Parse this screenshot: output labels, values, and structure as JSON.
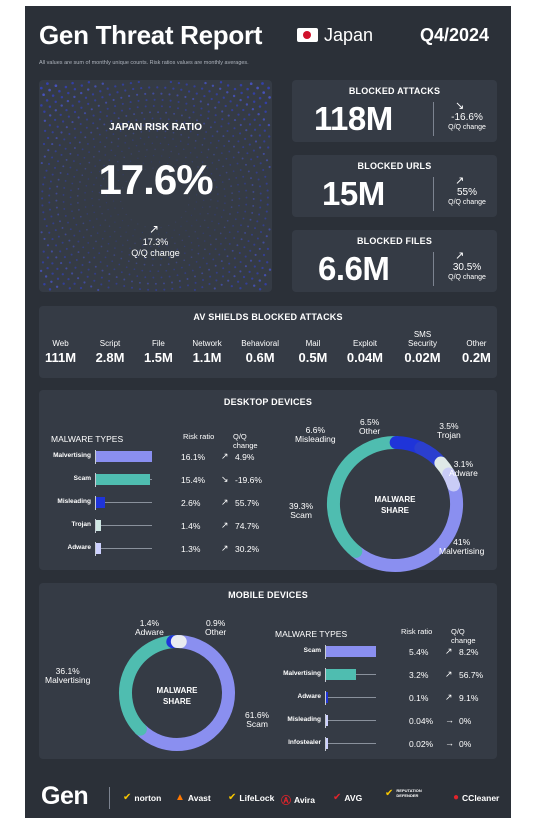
{
  "header": {
    "title": "Gen Threat Report",
    "country": "Japan",
    "quarter": "Q4/2024",
    "note": "All values are sum of monthly unique counts. Risk ratios values are monthly averages."
  },
  "risk": {
    "label": "JAPAN RISK RATIO",
    "value": "17.6%",
    "change": "17.3%",
    "change_label": "Q/Q change",
    "trend_icon": "trend-up-icon"
  },
  "stats": [
    {
      "title": "BLOCKED ATTACKS",
      "value": "118M",
      "change": "-16.6%",
      "change_label": "Q/Q change",
      "trend_icon": "trend-down-icon"
    },
    {
      "title": "BLOCKED URLS",
      "value": "15M",
      "change": "55%",
      "change_label": "Q/Q change",
      "trend_icon": "trend-up-icon"
    },
    {
      "title": "BLOCKED FILES",
      "value": "6.6M",
      "change": "30.5%",
      "change_label": "Q/Q change",
      "trend_icon": "trend-up-icon"
    }
  ],
  "shields": {
    "title": "AV SHIELDS BLOCKED ATTACKS",
    "items": [
      {
        "label": "Web",
        "value": "111M"
      },
      {
        "label": "Script",
        "value": "2.8M"
      },
      {
        "label": "File",
        "value": "1.5M"
      },
      {
        "label": "Network",
        "value": "1.1M"
      },
      {
        "label": "Behavioral",
        "value": "0.6M"
      },
      {
        "label": "Mail",
        "value": "0.5M"
      },
      {
        "label": "Exploit",
        "value": "0.04M"
      },
      {
        "label": "SMS Security",
        "value": "0.02M"
      },
      {
        "label": "Other",
        "value": "0.2M"
      }
    ]
  },
  "desktop": {
    "title": "DESKTOP DEVICES",
    "table_header": {
      "types": "MALWARE TYPES",
      "ratio": "Risk ratio",
      "change": "Q/Q change"
    },
    "rows": [
      {
        "name": "Malvertising",
        "ratio": "16.1%",
        "ratio_value": 16.1,
        "change": "4.9%",
        "trend": "up",
        "color": "#8a8ff0"
      },
      {
        "name": "Scam",
        "ratio": "15.4%",
        "ratio_value": 15.4,
        "change": "-19.6%",
        "trend": "down",
        "color": "#4fbdb0"
      },
      {
        "name": "Misleading",
        "ratio": "2.6%",
        "ratio_value": 2.6,
        "change": "55.7%",
        "trend": "up",
        "color": "#1f34d9"
      },
      {
        "name": "Trojan",
        "ratio": "1.4%",
        "ratio_value": 1.4,
        "change": "74.7%",
        "trend": "up",
        "color": "#cfe8e4"
      },
      {
        "name": "Adware",
        "ratio": "1.3%",
        "ratio_value": 1.3,
        "change": "30.2%",
        "trend": "up",
        "color": "#cdd1ff"
      }
    ],
    "donut_center": [
      "MALWARE",
      "SHARE"
    ],
    "shares": [
      {
        "name": "Malvertising",
        "value": 41,
        "label": "41%",
        "color": "#8a8ff0"
      },
      {
        "name": "Scam",
        "value": 39.3,
        "label": "39.3%",
        "color": "#4fbdb0"
      },
      {
        "name": "Misleading",
        "value": 6.6,
        "label": "6.6%",
        "color": "#1f34d9"
      },
      {
        "name": "Other",
        "value": 6.5,
        "label": "6.5%",
        "color": "#2b3fcf"
      },
      {
        "name": "Trojan",
        "value": 3.5,
        "label": "3.5%",
        "color": "#dfe9e7"
      },
      {
        "name": "Adware",
        "value": 3.1,
        "label": "3.1%",
        "color": "#c9ccf6"
      }
    ]
  },
  "mobile": {
    "title": "MOBILE DEVICES",
    "table_header": {
      "types": "MALWARE TYPES",
      "ratio": "Risk ratio",
      "change": "Q/Q change"
    },
    "rows": [
      {
        "name": "Scam",
        "ratio": "5.4%",
        "ratio_value": 5.4,
        "change": "8.2%",
        "trend": "up",
        "color": "#8a8ff0"
      },
      {
        "name": "Malvertising",
        "ratio": "3.2%",
        "ratio_value": 3.2,
        "change": "56.7%",
        "trend": "up",
        "color": "#4fbdb0"
      },
      {
        "name": "Adware",
        "ratio": "0.1%",
        "ratio_value": 0.1,
        "change": "9.1%",
        "trend": "up",
        "color": "#1f34d9"
      },
      {
        "name": "Misleading",
        "ratio": "0.04%",
        "ratio_value": 0.04,
        "change": "0%",
        "trend": "flat",
        "color": "#cdd1ff"
      },
      {
        "name": "Infostealer",
        "ratio": "0.02%",
        "ratio_value": 0.02,
        "change": "0%",
        "trend": "flat",
        "color": "#cdd1ff"
      }
    ],
    "donut_center": [
      "MALWARE",
      "SHARE"
    ],
    "shares": [
      {
        "name": "Scam",
        "value": 61.6,
        "label": "61.6%",
        "color": "#8a8ff0"
      },
      {
        "name": "Malvertising",
        "value": 36.1,
        "label": "36.1%",
        "color": "#4fbdb0"
      },
      {
        "name": "Adware",
        "value": 1.4,
        "label": "1.4%",
        "color": "#1f34d9"
      },
      {
        "name": "Other",
        "value": 0.9,
        "label": "0.9%",
        "color": "#e9ebf0"
      }
    ]
  },
  "footer": {
    "logo": "Gen",
    "brands": [
      {
        "name": "norton",
        "icon": "norton-check-icon",
        "color": "#f7c600"
      },
      {
        "name": "Avast",
        "icon": "avast-logo-icon",
        "color": "#ff7800"
      },
      {
        "name": "LifeLock",
        "icon": "lifelock-logo-icon",
        "color": "#f7c600"
      },
      {
        "name": "Avira",
        "icon": "avira-logo-icon",
        "color": "#e0242b"
      },
      {
        "name": "AVG",
        "icon": "avg-logo-icon",
        "color": "#e0242b"
      },
      {
        "name": "REPUTATION DEFENDER",
        "icon": "reputation-defender-logo-icon",
        "color": "#f7c600"
      },
      {
        "name": "CCleaner",
        "icon": "ccleaner-logo-icon",
        "color": "#e0242b"
      }
    ]
  }
}
